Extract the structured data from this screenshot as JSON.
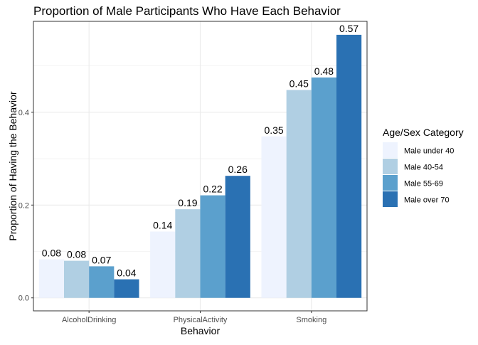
{
  "chart_data": {
    "type": "bar",
    "title": "Proportion of Male Participants Who Have Each Behavior",
    "xlabel": "Behavior",
    "ylabel": "Proportion of Having the Behavior",
    "categories": [
      "AlcoholDrinking",
      "PhysicalActivity",
      "Smoking"
    ],
    "series": [
      {
        "name": "Male under 40",
        "color": "#eef3fe",
        "values": [
          0.083,
          0.143,
          0.348
        ]
      },
      {
        "name": "Male 40-54",
        "color": "#b0cfe3",
        "values": [
          0.08,
          0.191,
          0.448
        ]
      },
      {
        "name": "Male 55-69",
        "color": "#5ba0cd",
        "values": [
          0.068,
          0.221,
          0.475
        ]
      },
      {
        "name": "Male over 70",
        "color": "#2a71b3",
        "values": [
          0.04,
          0.263,
          0.567
        ]
      }
    ],
    "data_labels": [
      [
        "0.08",
        "0.14",
        "0.35"
      ],
      [
        "0.08",
        "0.19",
        "0.45"
      ],
      [
        "0.07",
        "0.22",
        "0.48"
      ],
      [
        "0.04",
        "0.26",
        "0.57"
      ]
    ],
    "yticks": [
      0.0,
      0.2,
      0.4
    ],
    "ytick_labels": [
      "0.0",
      "0.2",
      "0.4"
    ],
    "ylim": [
      -0.028,
      0.596
    ],
    "legend_title": "Age/Sex Category",
    "legend_position": "right",
    "grid": true,
    "theme": "bw"
  }
}
